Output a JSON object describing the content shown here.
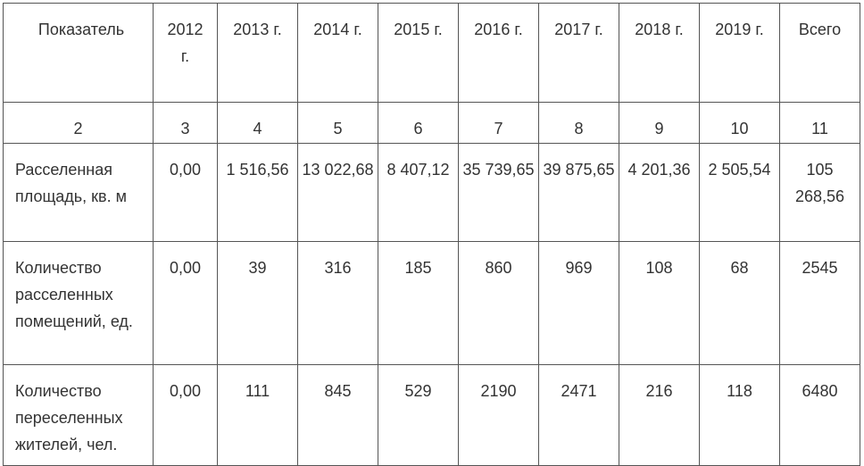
{
  "header": [
    "Показатель",
    "2012 г.",
    "2013 г.",
    "2014 г.",
    "2015 г.",
    "2016 г.",
    "2017 г.",
    "2018 г.",
    "2019 г.",
    "Всего"
  ],
  "numbers": [
    "2",
    "3",
    "4",
    "5",
    "6",
    "7",
    "8",
    "9",
    "10",
    "11"
  ],
  "rows": [
    {
      "label": "Расселенная площадь, кв. м",
      "values": [
        "0,00",
        "1 516,56",
        "13 022,68",
        "8 407,12",
        "35 739,65",
        "39 875,65",
        "4 201,36",
        "2 505,54",
        "105 268,56"
      ]
    },
    {
      "label": "Количество расселенных помещений, ед.",
      "values": [
        "0,00",
        "39",
        "316",
        "185",
        "860",
        "969",
        "108",
        "68",
        "2545"
      ]
    },
    {
      "label": "Количество переселенных жителей, чел.",
      "values": [
        "0,00",
        "111",
        "845",
        "529",
        "2190",
        "2471",
        "216",
        "118",
        "6480"
      ]
    }
  ]
}
